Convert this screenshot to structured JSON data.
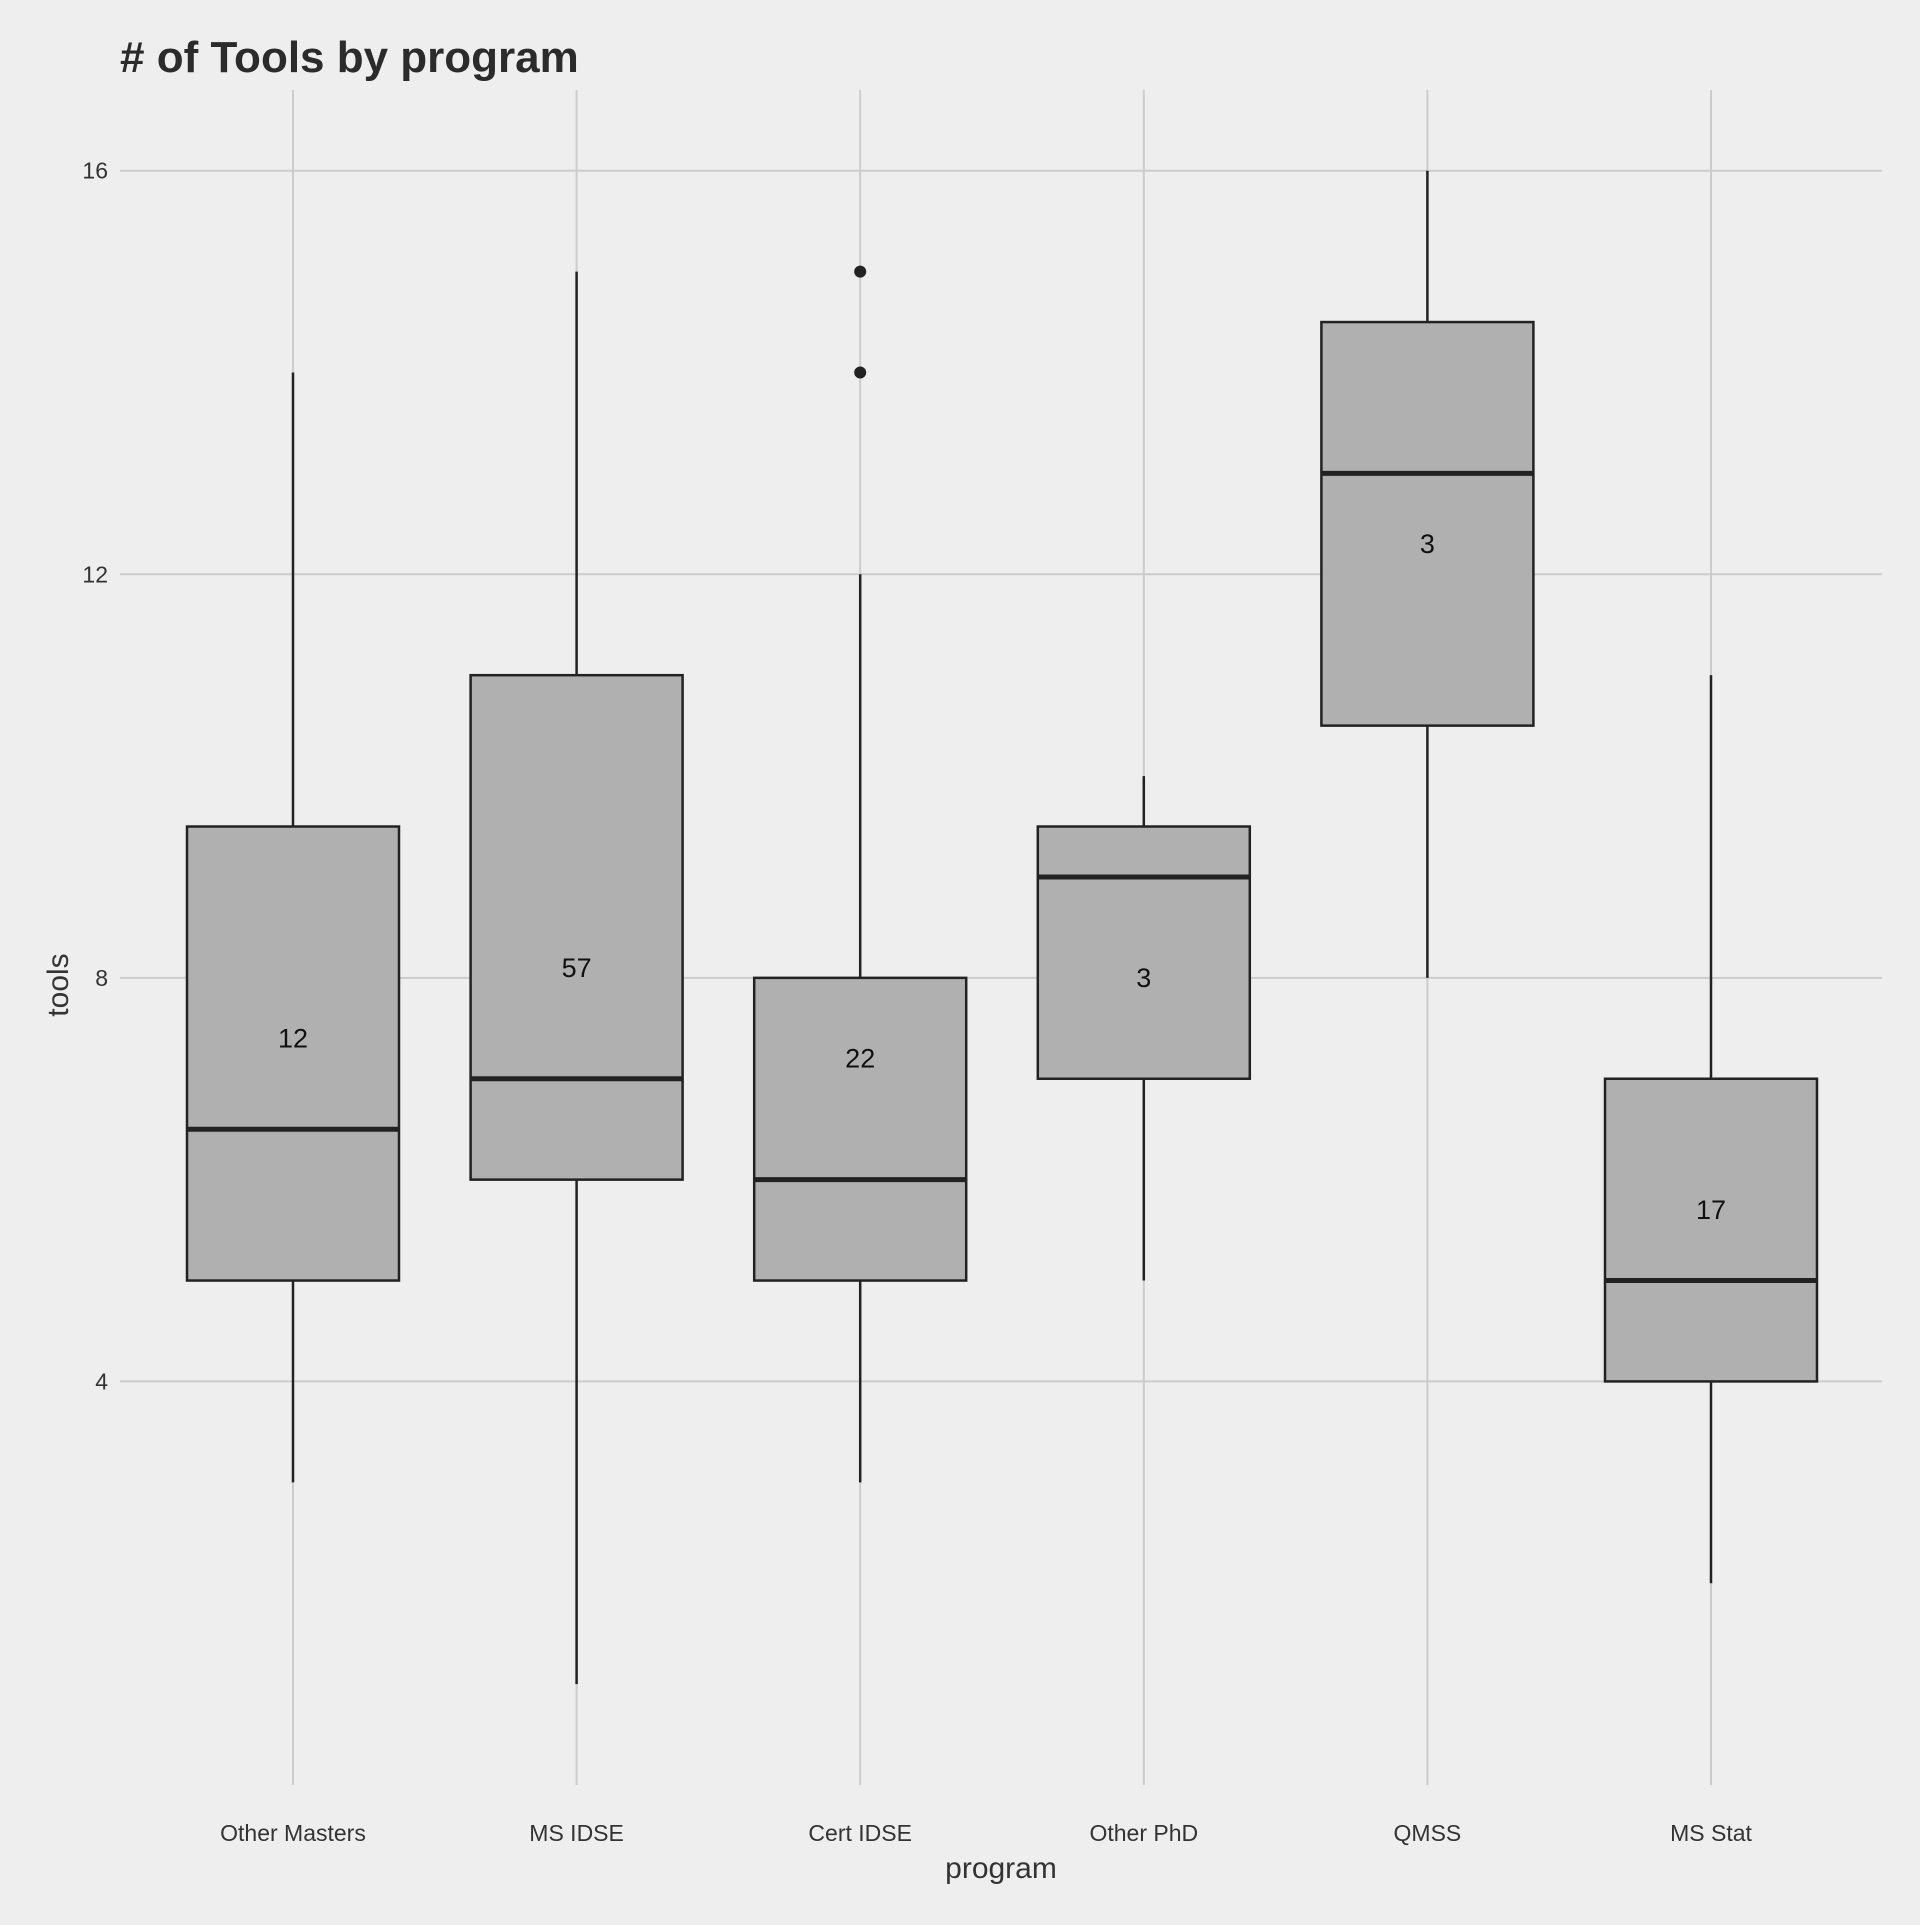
{
  "chart_data": {
    "type": "boxplot",
    "title": "# of Tools by program",
    "xlabel": "program",
    "ylabel": "tools",
    "ylim": [
      0,
      16.8
    ],
    "yticks": [
      4,
      8,
      12,
      16
    ],
    "grid": true,
    "legend": "none",
    "categories": [
      "Other Masters",
      "MS IDSE",
      "Cert IDSE",
      "Other PhD",
      "QMSS",
      "MS Stat"
    ],
    "boxes": [
      {
        "program": "Other Masters",
        "whisker_low": 3,
        "q1": 5,
        "median": 6.5,
        "q3": 9.5,
        "whisker_high": 14,
        "outliers": [],
        "count_label": "12",
        "count_label_y": 7.4
      },
      {
        "program": "MS IDSE",
        "whisker_low": 1,
        "q1": 6,
        "median": 7,
        "q3": 11,
        "whisker_high": 15,
        "outliers": [],
        "count_label": "57",
        "count_label_y": 8.1
      },
      {
        "program": "Cert IDSE",
        "whisker_low": 3,
        "q1": 5,
        "median": 6,
        "q3": 8,
        "whisker_high": 12,
        "outliers": [
          14,
          15
        ],
        "count_label": "22",
        "count_label_y": 7.2
      },
      {
        "program": "Other PhD",
        "whisker_low": 5,
        "q1": 7,
        "median": 9,
        "q3": 9.5,
        "whisker_high": 10,
        "outliers": [],
        "count_label": "3",
        "count_label_y": 8.0
      },
      {
        "program": "QMSS",
        "whisker_low": 8,
        "q1": 10.5,
        "median": 13,
        "q3": 14.5,
        "whisker_high": 16,
        "outliers": [],
        "count_label": "3",
        "count_label_y": 12.3
      },
      {
        "program": "MS Stat",
        "whisker_low": 2,
        "q1": 4,
        "median": 5,
        "q3": 7,
        "whisker_high": 11,
        "outliers": [],
        "count_label": "17",
        "count_label_y": 5.7
      }
    ],
    "colors": {
      "background": "#eeeeee",
      "grid": "#cccccc",
      "box_fill": "#b0b0b0",
      "box_stroke": "#222222",
      "text": "#333333"
    }
  }
}
